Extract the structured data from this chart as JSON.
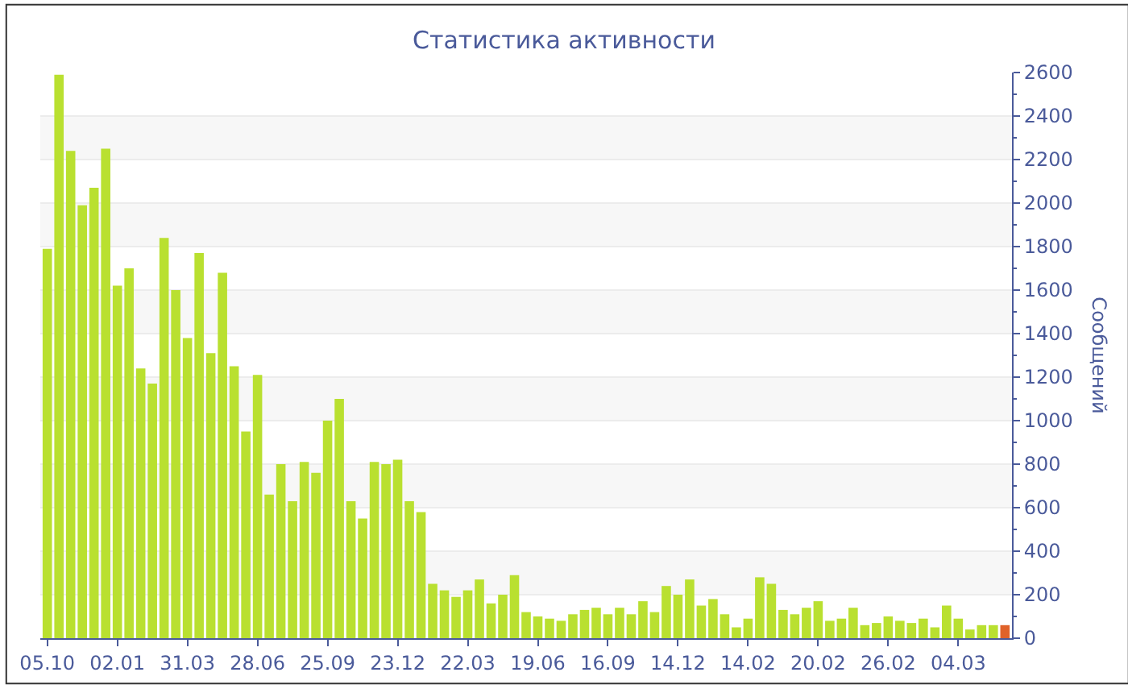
{
  "chart_data": {
    "type": "bar",
    "title": "Статистика активности",
    "ylabel": "Сообщений",
    "categories": [
      "05.10",
      null,
      null,
      null,
      null,
      null,
      "02.01",
      null,
      null,
      null,
      null,
      null,
      "31.03",
      null,
      null,
      null,
      null,
      null,
      "28.06",
      null,
      null,
      null,
      null,
      null,
      "25.09",
      null,
      null,
      null,
      null,
      null,
      "23.12",
      null,
      null,
      null,
      null,
      null,
      "22.03",
      null,
      null,
      null,
      null,
      null,
      "19.06",
      null,
      null,
      null,
      null,
      null,
      "16.09",
      null,
      null,
      null,
      null,
      null,
      "14.12",
      null,
      null,
      null,
      null,
      null,
      "14.02",
      null,
      null,
      null,
      null,
      null,
      "20.02",
      null,
      null,
      null,
      null,
      null,
      "26.02",
      null,
      null,
      null,
      null,
      null,
      "04.03",
      null,
      null,
      null,
      null
    ],
    "values": [
      1790,
      2590,
      2240,
      1990,
      2070,
      2250,
      1620,
      1700,
      1240,
      1170,
      1840,
      1600,
      1380,
      1770,
      1310,
      1680,
      1250,
      950,
      1210,
      660,
      800,
      630,
      810,
      760,
      1000,
      1100,
      630,
      550,
      810,
      800,
      820,
      630,
      580,
      250,
      220,
      190,
      220,
      270,
      160,
      200,
      290,
      120,
      100,
      90,
      80,
      110,
      130,
      140,
      110,
      140,
      110,
      170,
      120,
      240,
      200,
      270,
      150,
      180,
      110,
      50,
      90,
      280,
      250,
      130,
      110,
      140,
      170,
      80,
      90,
      140,
      60,
      70,
      100,
      80,
      70,
      90,
      50,
      150,
      90,
      40,
      60,
      60,
      60
    ],
    "colors": [
      "#b9e030",
      "#b9e030",
      "#b9e030",
      "#b9e030",
      "#b9e030",
      "#b9e030",
      "#b9e030",
      "#b9e030",
      "#b9e030",
      "#b9e030",
      "#b9e030",
      "#b9e030",
      "#b9e030",
      "#b9e030",
      "#b9e030",
      "#b9e030",
      "#b9e030",
      "#b9e030",
      "#b9e030",
      "#b9e030",
      "#b9e030",
      "#b9e030",
      "#b9e030",
      "#b9e030",
      "#b9e030",
      "#b9e030",
      "#b9e030",
      "#b9e030",
      "#b9e030",
      "#b9e030",
      "#b9e030",
      "#b9e030",
      "#b9e030",
      "#b9e030",
      "#b9e030",
      "#b9e030",
      "#b9e030",
      "#b9e030",
      "#b9e030",
      "#b9e030",
      "#b9e030",
      "#b9e030",
      "#b9e030",
      "#b9e030",
      "#b9e030",
      "#b9e030",
      "#b9e030",
      "#b9e030",
      "#b9e030",
      "#b9e030",
      "#b9e030",
      "#b9e030",
      "#b9e030",
      "#b9e030",
      "#b9e030",
      "#b9e030",
      "#b9e030",
      "#b9e030",
      "#b9e030",
      "#b9e030",
      "#b9e030",
      "#b9e030",
      "#b9e030",
      "#b9e030",
      "#b9e030",
      "#b9e030",
      "#b9e030",
      "#b9e030",
      "#b9e030",
      "#b9e030",
      "#b9e030",
      "#b9e030",
      "#b9e030",
      "#b9e030",
      "#b9e030",
      "#b9e030",
      "#b9e030",
      "#b9e030",
      "#b9e030",
      "#b9e030",
      "#b9e030",
      "#b9e030",
      "#e0622a"
    ],
    "ylim": [
      0,
      2600
    ],
    "yticks": [
      0,
      200,
      400,
      600,
      800,
      1000,
      1200,
      1400,
      1600,
      1800,
      2000,
      2200,
      2400,
      2600
    ],
    "grid": "y",
    "legend": false
  }
}
